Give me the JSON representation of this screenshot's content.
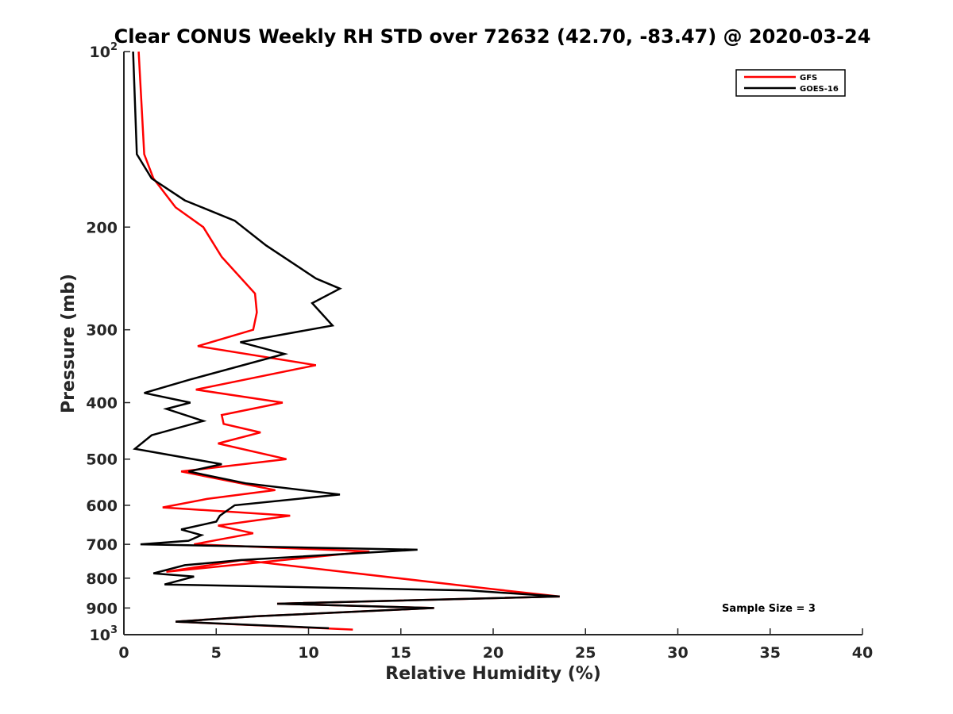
{
  "chart_data": {
    "type": "line",
    "title": "Clear CONUS Weekly RH STD over 72632 (42.70, -83.47) @ 2020-03-24",
    "xlabel": "Relative Humidity (%)",
    "ylabel": "Pressure (mb)",
    "xlim": [
      0,
      40
    ],
    "ylim": [
      100,
      1000
    ],
    "y_scale": "log",
    "y_reversed": true,
    "x_ticks": [
      0,
      5,
      10,
      15,
      20,
      25,
      30,
      35,
      40
    ],
    "x_tick_labels": [
      "0",
      "5",
      "10",
      "15",
      "20",
      "25",
      "30",
      "35",
      "40"
    ],
    "y_ticks": [
      100,
      200,
      300,
      400,
      500,
      600,
      700,
      800,
      900,
      1000
    ],
    "y_tick_labels": [
      {
        "base": "10",
        "exp": "2"
      },
      {
        "base": "200",
        "exp": ""
      },
      {
        "base": "300",
        "exp": ""
      },
      {
        "base": "400",
        "exp": ""
      },
      {
        "base": "500",
        "exp": ""
      },
      {
        "base": "600",
        "exp": ""
      },
      {
        "base": "700",
        "exp": ""
      },
      {
        "base": "800",
        "exp": ""
      },
      {
        "base": "900",
        "exp": ""
      },
      {
        "base": "10",
        "exp": "3"
      }
    ],
    "grid": false,
    "legend": "top-right",
    "annotation": "Sample Size = 3",
    "series": [
      {
        "name": "GFS",
        "color": "#ff0000",
        "x": [
          0.8,
          1.1,
          1.6,
          2.8,
          4.3,
          5.3,
          7.1,
          7.2,
          7.0,
          4.0,
          10.4,
          3.9,
          8.6,
          5.3,
          5.4,
          7.4,
          5.1,
          8.8,
          3.1,
          8.2,
          4.5,
          2.1,
          9.0,
          5.1,
          7.0,
          3.8,
          13.3,
          2.3,
          6.4,
          19.9,
          23.6,
          8.3,
          16.8,
          7.2,
          2.8,
          12.4
        ],
        "y": [
          100,
          150,
          165,
          185,
          200,
          225,
          260,
          280,
          300,
          320,
          345,
          380,
          400,
          420,
          435,
          450,
          470,
          500,
          525,
          565,
          585,
          605,
          625,
          650,
          670,
          700,
          720,
          780,
          745,
          835,
          860,
          885,
          900,
          930,
          950,
          980
        ]
      },
      {
        "name": "GOES-16",
        "color": "#000000",
        "x": [
          0.5,
          0.7,
          1.5,
          3.3,
          6.0,
          7.7,
          10.4,
          11.7,
          10.2,
          11.3,
          6.3,
          8.7,
          3.6,
          1.1,
          3.6,
          2.3,
          4.3,
          1.5,
          0.6,
          5.3,
          3.5,
          6.6,
          11.7,
          6.0,
          5.2,
          5.0,
          3.1,
          4.2,
          3.5,
          0.9,
          15.9,
          6.3,
          3.3,
          1.6,
          3.8,
          2.2,
          18.7,
          23.6,
          8.3,
          16.8,
          7.2,
          2.8,
          11.1
        ],
        "y": [
          100,
          150,
          165,
          180,
          195,
          215,
          245,
          255,
          270,
          295,
          315,
          330,
          365,
          385,
          400,
          410,
          430,
          455,
          480,
          510,
          525,
          550,
          575,
          600,
          625,
          640,
          660,
          675,
          690,
          700,
          715,
          745,
          760,
          785,
          795,
          820,
          840,
          860,
          885,
          900,
          930,
          950,
          975
        ]
      }
    ]
  }
}
